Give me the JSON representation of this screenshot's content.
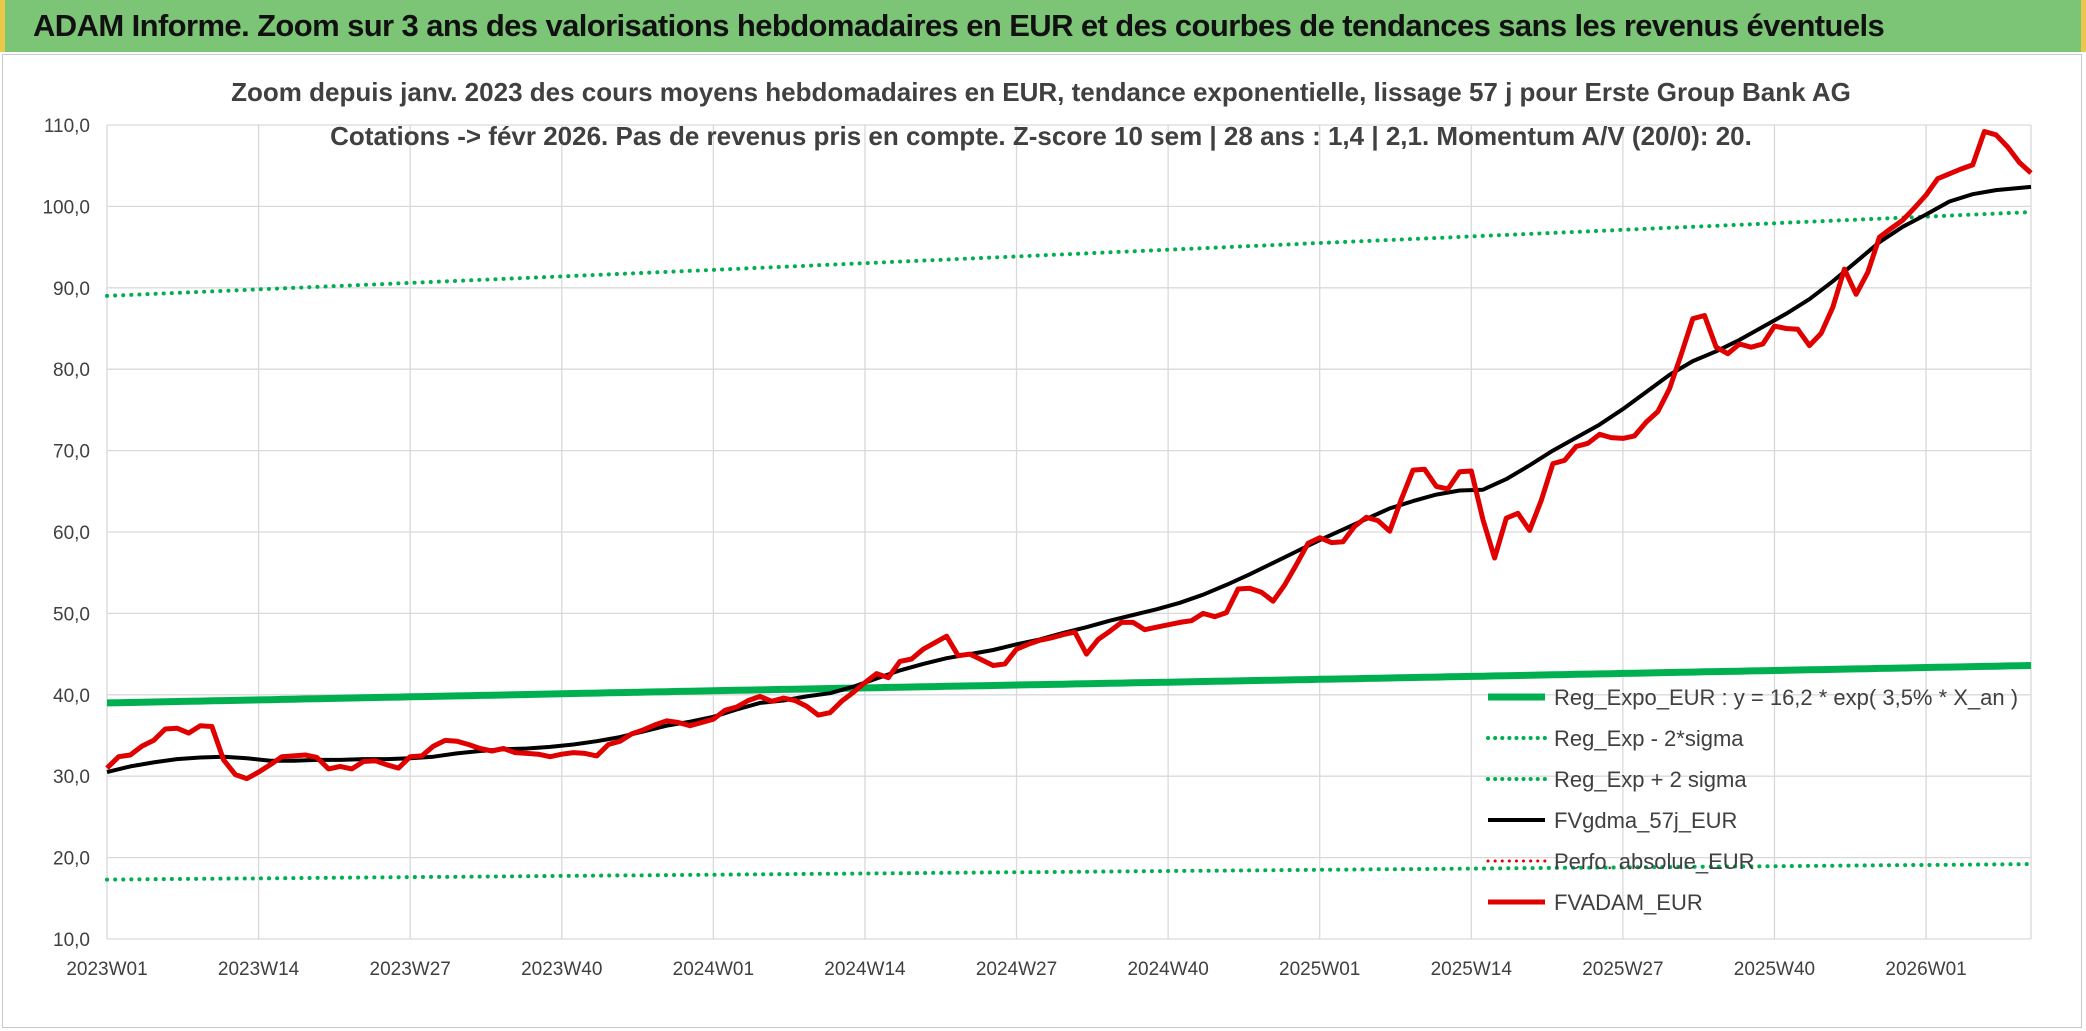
{
  "banner": {
    "title": "ADAM Informe. Zoom sur 3 ans des valorisations hebdomadaires en EUR et des courbes de tendances sans les revenus éventuels"
  },
  "colors": {
    "reg_expo": "#00b050",
    "reg_sigma": "#00b050",
    "fvgdma": "#000000",
    "perfo": "#e00000",
    "fvadam": "#e00000",
    "banner": "#7cc576"
  },
  "chart_data": {
    "type": "line",
    "title_lines": [
      "Zoom depuis janv. 2023 des cours moyens hebdomadaires en EUR, tendance exponentielle, lissage 57 j pour Erste Group Bank AG",
      "Cotations -> févr 2026. Pas de revenus pris en compte. Z-score 10 sem | 28 ans : 1,4 | 2,1. Momentum A/V (20/0): 20."
    ],
    "ylim": [
      10,
      110
    ],
    "y_ticks": [
      "10,0",
      "20,0",
      "30,0",
      "40,0",
      "50,0",
      "60,0",
      "70,0",
      "80,0",
      "90,0",
      "100,0",
      "110,0"
    ],
    "x_ticks": [
      "2023W01",
      "2023W14",
      "2023W27",
      "2023W40",
      "2024W01",
      "2024W14",
      "2024W27",
      "2024W40",
      "2025W01",
      "2025W14",
      "2025W27",
      "2025W40",
      "2026W01"
    ],
    "x_tick_weeks": [
      0,
      13,
      26,
      39,
      52,
      65,
      78,
      91,
      104,
      117,
      130,
      143,
      156
    ],
    "week_count": 166,
    "grid": true,
    "legend_position": "bottom-right",
    "series": [
      {
        "name": "Reg_Expo_EUR : y = 16,2 * exp( 3,5% *  X_an )",
        "style": "solid",
        "color": "#00b050",
        "width": 7,
        "x": [
          0,
          52,
          104,
          165
        ],
        "y": [
          39.0,
          40.5,
          41.9,
          43.6
        ]
      },
      {
        "name": "Reg_Exp - 2*sigma",
        "style": "dotted",
        "color": "#00b050",
        "width": 4,
        "x": [
          0,
          52,
          104,
          165
        ],
        "y": [
          17.3,
          17.9,
          18.5,
          19.2
        ]
      },
      {
        "name": "Reg_Exp + 2 sigma",
        "style": "dotted",
        "color": "#00b050",
        "width": 4,
        "x": [
          0,
          52,
          104,
          165
        ],
        "y": [
          89.0,
          92.2,
          95.5,
          99.3
        ]
      },
      {
        "name": "FVgdma_57j_EUR",
        "style": "solid",
        "color": "#000000",
        "width": 4,
        "x": [
          0,
          2,
          4,
          6,
          8,
          10,
          12,
          14,
          16,
          18,
          20,
          22,
          24,
          26,
          28,
          30,
          32,
          34,
          36,
          38,
          40,
          42,
          44,
          46,
          48,
          50,
          52,
          54,
          56,
          58,
          60,
          62,
          64,
          66,
          68,
          70,
          72,
          74,
          76,
          78,
          80,
          82,
          84,
          86,
          88,
          90,
          92,
          94,
          96,
          98,
          100,
          102,
          104,
          106,
          108,
          110,
          112,
          114,
          116,
          118,
          120,
          122,
          124,
          126,
          128,
          130,
          132,
          134,
          136,
          138,
          140,
          142,
          144,
          146,
          148,
          150,
          152,
          154,
          156,
          158,
          160,
          162,
          165
        ],
        "y": [
          30.5,
          31.2,
          31.7,
          32.1,
          32.3,
          32.4,
          32.2,
          31.9,
          31.9,
          32.0,
          32.0,
          32.1,
          32.1,
          32.2,
          32.4,
          32.8,
          33.1,
          33.3,
          33.4,
          33.6,
          33.9,
          34.3,
          34.8,
          35.5,
          36.2,
          36.7,
          37.3,
          38.2,
          39.0,
          39.3,
          39.8,
          40.2,
          41.0,
          42.0,
          43.0,
          43.8,
          44.5,
          45.0,
          45.5,
          46.2,
          46.8,
          47.6,
          48.3,
          49.1,
          49.8,
          50.5,
          51.3,
          52.3,
          53.5,
          54.8,
          56.2,
          57.6,
          59.0,
          60.3,
          61.6,
          62.9,
          63.8,
          64.6,
          65.1,
          65.2,
          66.5,
          68.2,
          70.0,
          71.6,
          73.2,
          75.1,
          77.2,
          79.3,
          81.0,
          82.2,
          83.6,
          85.2,
          86.8,
          88.6,
          90.8,
          93.2,
          95.6,
          97.5,
          99.0,
          100.6,
          101.5,
          102.0,
          102.4
        ]
      },
      {
        "name": "Perfo. absolue_EUR",
        "style": "dotted",
        "color": "#e00000",
        "width": 3,
        "x": [],
        "y": []
      },
      {
        "name": "FVADAM_EUR",
        "style": "solid",
        "color": "#e00000",
        "width": 5,
        "x": [
          0,
          1,
          2,
          3,
          4,
          5,
          6,
          7,
          8,
          9,
          10,
          11,
          12,
          13,
          14,
          15,
          16,
          17,
          18,
          19,
          20,
          21,
          22,
          23,
          24,
          25,
          26,
          27,
          28,
          29,
          30,
          31,
          32,
          33,
          34,
          35,
          36,
          37,
          38,
          39,
          40,
          41,
          42,
          43,
          44,
          45,
          46,
          47,
          48,
          49,
          50,
          51,
          52,
          53,
          54,
          55,
          56,
          57,
          58,
          59,
          60,
          61,
          62,
          63,
          64,
          65,
          66,
          67,
          68,
          69,
          70,
          71,
          72,
          73,
          74,
          75,
          76,
          77,
          78,
          79,
          80,
          81,
          82,
          83,
          84,
          85,
          86,
          87,
          88,
          89,
          90,
          91,
          92,
          93,
          94,
          95,
          96,
          97,
          98,
          99,
          100,
          101,
          102,
          103,
          104,
          105,
          106,
          107,
          108,
          109,
          110,
          111,
          112,
          113,
          114,
          115,
          116,
          117,
          118,
          119,
          120,
          121,
          122,
          123,
          124,
          125,
          126,
          127,
          128,
          129,
          130,
          131,
          132,
          133,
          134,
          135,
          136,
          137,
          138,
          139,
          140,
          141,
          142,
          143,
          144,
          145,
          146,
          147,
          148,
          149,
          150,
          151,
          152,
          153,
          154,
          155,
          156,
          157,
          158,
          159,
          160,
          161,
          162,
          163,
          164,
          165
        ],
        "y": [
          31.0,
          32.4,
          32.6,
          33.7,
          34.4,
          35.8,
          35.9,
          35.3,
          36.2,
          36.1,
          32.0,
          30.2,
          29.7,
          30.5,
          31.4,
          32.4,
          32.5,
          32.6,
          32.3,
          30.9,
          31.2,
          30.9,
          31.8,
          31.9,
          31.4,
          31.0,
          32.4,
          32.5,
          33.7,
          34.4,
          34.3,
          33.9,
          33.4,
          33.1,
          33.4,
          32.9,
          32.8,
          32.7,
          32.4,
          32.7,
          32.9,
          32.8,
          32.5,
          33.9,
          34.3,
          35.2,
          35.7,
          36.3,
          36.8,
          36.6,
          36.2,
          36.6,
          37.0,
          38.1,
          38.5,
          39.3,
          39.8,
          39.2,
          39.6,
          39.3,
          38.6,
          37.5,
          37.8,
          39.2,
          40.3,
          41.5,
          42.6,
          42.1,
          44.1,
          44.4,
          45.6,
          46.4,
          47.2,
          44.8,
          45.0,
          44.3,
          43.6,
          43.8,
          45.6,
          46.2,
          46.7,
          47.0,
          47.4,
          47.7,
          45.0,
          46.8,
          47.8,
          48.9,
          48.9,
          48.0,
          48.3,
          48.6,
          48.9,
          49.1,
          50.0,
          49.6,
          50.1,
          53.0,
          53.1,
          52.6,
          51.5,
          53.5,
          56.0,
          58.6,
          59.3,
          58.7,
          58.8,
          60.7,
          61.8,
          61.4,
          60.1,
          64.0,
          67.6,
          67.7,
          65.6,
          65.3,
          67.4,
          67.5,
          61.5,
          56.8,
          61.7,
          62.3,
          60.2,
          63.9,
          68.4,
          68.8,
          70.5,
          70.9,
          72.0,
          71.6,
          71.5,
          71.8,
          73.5,
          74.8,
          77.6,
          81.8,
          86.2,
          86.6,
          82.7,
          81.9,
          83.1,
          82.7,
          83.1,
          85.3,
          85.0,
          84.9,
          82.9,
          84.4,
          87.6,
          92.3,
          89.2,
          91.9,
          96.2,
          97.3,
          98.3,
          99.8,
          101.4,
          103.4,
          104.0,
          104.6,
          105.1,
          109.2,
          108.8,
          107.3,
          105.4,
          104.1
        ]
      }
    ]
  }
}
